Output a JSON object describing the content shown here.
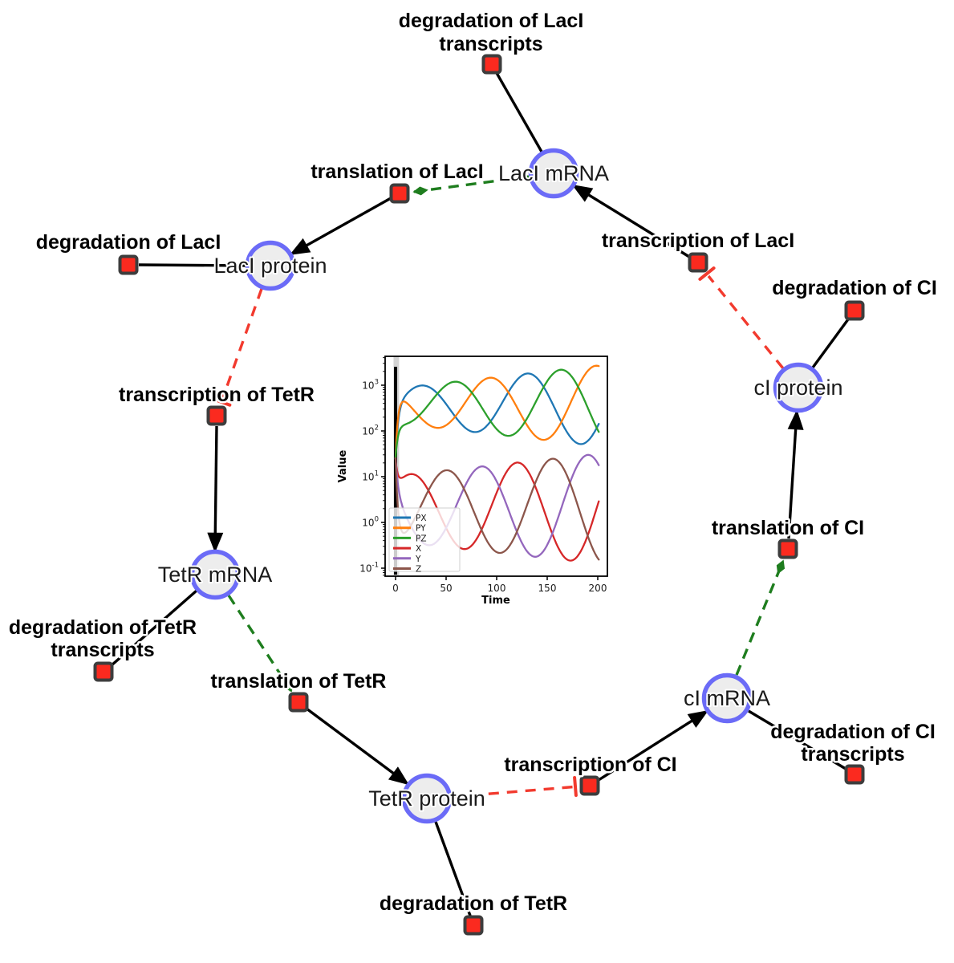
{
  "figure": {
    "background": "#ffffff",
    "description": "Repressilator gene-regulatory reaction network with inset simulation time-course plot"
  },
  "diagram": {
    "species": [
      {
        "label": "LacI mRNA"
      },
      {
        "label": "LacI protein"
      },
      {
        "label": "TetR mRNA"
      },
      {
        "label": "TetR protein"
      },
      {
        "label": "cI mRNA"
      },
      {
        "label": "cI protein"
      }
    ],
    "reactions": [
      {
        "lines": [
          "degradation of LacI",
          "transcripts"
        ]
      },
      {
        "lines": [
          "translation of LacI"
        ]
      },
      {
        "lines": [
          "degradation of LacI"
        ]
      },
      {
        "lines": [
          "transcription of LacI"
        ]
      },
      {
        "lines": [
          "degradation of CI"
        ]
      },
      {
        "lines": [
          "transcription of TetR"
        ]
      },
      {
        "lines": [
          "degradation of TetR",
          "transcripts"
        ]
      },
      {
        "lines": [
          "translation of TetR"
        ]
      },
      {
        "lines": [
          "translation of CI"
        ]
      },
      {
        "lines": [
          "transcription of CI"
        ]
      },
      {
        "lines": [
          "degradation of CI",
          "transcripts"
        ]
      },
      {
        "lines": [
          "degradation of TetR"
        ]
      }
    ],
    "colors": {
      "species_fill": "#ededed",
      "species_stroke": "#6b6bf7",
      "reaction_fill": "#fb2a1f",
      "reaction_stroke": "#3d3d3d",
      "edge_black": "#000000",
      "modifier_green": "#1e7d1e",
      "inhibition_red": "#f23a2e"
    }
  },
  "chart_data": {
    "type": "line",
    "title": "",
    "xlabel": "Time",
    "ylabel": "Value",
    "x_ticks": [
      0,
      50,
      100,
      150,
      200
    ],
    "y_scale": "log",
    "y_tick_exponents": [
      -1,
      0,
      1,
      2,
      3
    ],
    "xlim": [
      -10.3,
      209.5
    ],
    "ylim_log": [
      -1.17,
      3.63
    ],
    "grid": false,
    "legend_position": "lower left",
    "legend": [
      "PX",
      "PY",
      "PZ",
      "X",
      "Y",
      "Z"
    ],
    "annotations": {
      "vline_t": 0,
      "band_t": [
        -2,
        3.5
      ]
    },
    "t_range": [
      0,
      201
    ],
    "series": [
      {
        "name": "PX",
        "color": "#1f77b4",
        "kind": "protein",
        "period": 105,
        "peak_times": [
          25,
          130
        ],
        "approx_range": [
          70,
          2200
        ],
        "log_center": 2.55,
        "log_amp_start": 0.38,
        "log_amp_growth": 0.0025,
        "peak_time": 25,
        "initial_log": 1.4
      },
      {
        "name": "PY",
        "color": "#ff7f0e",
        "kind": "protein",
        "period": 105,
        "peak_times": [
          93,
          198
        ],
        "approx_range": [
          45,
          2300
        ],
        "log_center": 2.55,
        "log_amp_start": 0.38,
        "log_amp_growth": 0.0025,
        "peak_time": 93,
        "initial_log": 1.4
      },
      {
        "name": "PZ",
        "color": "#2ca02c",
        "kind": "protein",
        "period": 105,
        "peak_times": [
          58,
          163
        ],
        "approx_range": [
          55,
          2300
        ],
        "log_center": 2.55,
        "log_amp_start": 0.38,
        "log_amp_growth": 0.0025,
        "peak_time": 58,
        "initial_log": 1.4
      },
      {
        "name": "X",
        "color": "#d62728",
        "kind": "mRNA",
        "period": 105,
        "peak_times": [
          15,
          120
        ],
        "approx_range": [
          0.13,
          23
        ],
        "log_center": 0.3,
        "log_amp_start": 0.72,
        "log_amp_growth": 0.0024,
        "peak_time": 15,
        "initial_log": 1.4
      },
      {
        "name": "Y",
        "color": "#9467bd",
        "kind": "mRNA",
        "period": 105,
        "peak_times": [
          85,
          190
        ],
        "approx_range": [
          0.15,
          28
        ],
        "log_center": 0.3,
        "log_amp_start": 0.72,
        "log_amp_growth": 0.0024,
        "peak_time": 85,
        "initial_log": 1.4
      },
      {
        "name": "Z",
        "color": "#8c564b",
        "kind": "mRNA",
        "period": 105,
        "peak_times": [
          50,
          155
        ],
        "approx_range": [
          0.1,
          28
        ],
        "log_center": 0.3,
        "log_amp_start": 0.72,
        "log_amp_growth": 0.0024,
        "peak_time": 50,
        "initial_log": 1.4
      }
    ]
  }
}
